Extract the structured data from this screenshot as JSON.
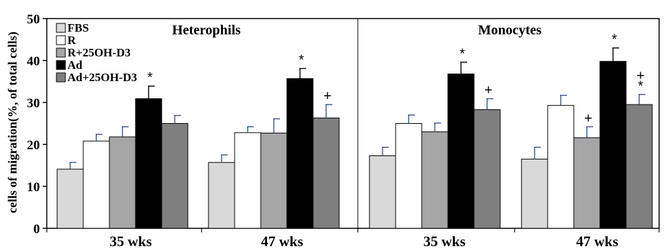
{
  "chart_data": {
    "type": "bar",
    "ylabel": "cells of migration(%, of total cells)",
    "ylim": [
      0,
      50
    ],
    "yticks": [
      0,
      10,
      20,
      30,
      40,
      50
    ],
    "grid": false,
    "legend_position": "top-left",
    "groups": [
      "35 wks",
      "47 wks"
    ],
    "series": [
      {
        "name": "FBS",
        "color": "#d9d9d9"
      },
      {
        "name": "R",
        "color": "#ffffff"
      },
      {
        "name": "R+25OH-D3",
        "color": "#a6a6a6"
      },
      {
        "name": "Ad",
        "color": "#000000"
      },
      {
        "name": "Ad+25OH-D3",
        "color": "#7f7f7f"
      }
    ],
    "panels": [
      {
        "title": "Heterophils",
        "values": [
          [
            14.1,
            20.8,
            21.8,
            30.9,
            25.0
          ],
          [
            15.7,
            22.8,
            22.7,
            35.7,
            26.3
          ]
        ],
        "errors": [
          [
            1.6,
            1.6,
            2.4,
            3.0,
            1.9
          ],
          [
            1.8,
            1.4,
            3.4,
            2.4,
            3.2
          ]
        ],
        "markers": [
          [
            "",
            "",
            "",
            "*",
            ""
          ],
          [
            "",
            "",
            "",
            "*",
            "+"
          ]
        ]
      },
      {
        "title": "Monocytes",
        "values": [
          [
            17.3,
            25.0,
            23.0,
            36.8,
            28.3
          ],
          [
            16.5,
            29.3,
            21.6,
            39.8,
            29.5
          ]
        ],
        "errors": [
          [
            2.0,
            2.0,
            2.1,
            2.8,
            2.6
          ],
          [
            2.8,
            2.4,
            2.6,
            3.2,
            2.4
          ]
        ],
        "markers": [
          [
            "",
            "",
            "",
            "*",
            "+"
          ],
          [
            "",
            "",
            "+",
            "*",
            "+*"
          ]
        ]
      }
    ]
  }
}
